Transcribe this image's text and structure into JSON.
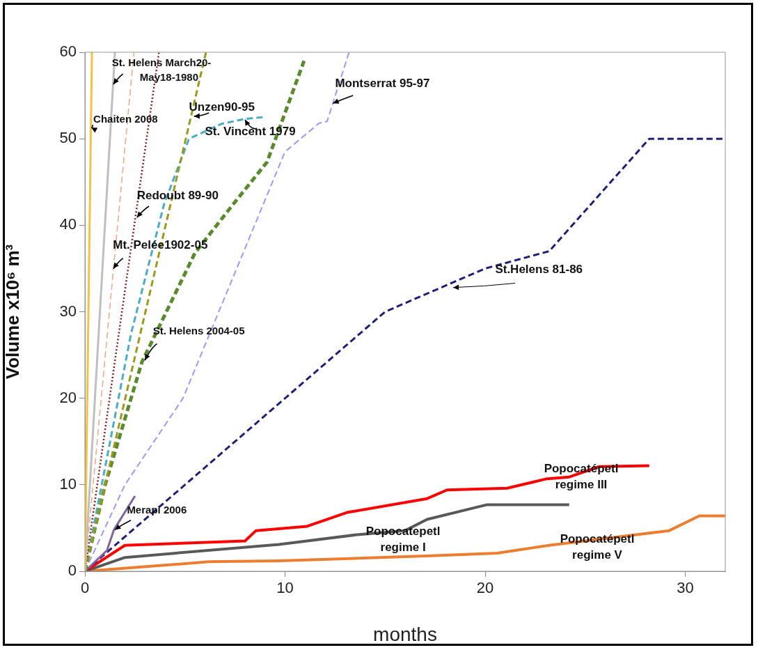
{
  "chart_data": {
    "type": "line",
    "xlabel": "months",
    "ylabel": "Volume x10⁶ m³",
    "xlim": [
      0,
      32
    ],
    "ylim": [
      0,
      60
    ],
    "xticks": [
      0,
      10,
      20,
      30
    ],
    "yticks": [
      0,
      10,
      20,
      30,
      40,
      50,
      60
    ],
    "grid": false,
    "legend": false,
    "marker": "none",
    "series": [
      {
        "name": "Chaiten 2008",
        "color": "#f5c242",
        "line_style": "solid",
        "x": [
          0,
          0.35
        ],
        "values": [
          0,
          60
        ]
      },
      {
        "name": "St. Helens March20-\nMay18-1980",
        "color": "#bfbfbf",
        "line_style": "solid",
        "x": [
          0,
          1.5
        ],
        "values": [
          0,
          60
        ]
      },
      {
        "name": "Mt. Pelée1902-05",
        "color": "#f4a582",
        "line_style": "dashed",
        "x": [
          0,
          2.45
        ],
        "values": [
          0,
          60
        ]
      },
      {
        "name": "Redoubt 89-90",
        "color": "#8b1a1a",
        "line_style": "dotted",
        "x": [
          0,
          3.7
        ],
        "values": [
          0,
          60
        ]
      },
      {
        "name": "Unzen90-95",
        "color": "#9a9a1a",
        "line_style": "dashed",
        "x": [
          0,
          6.05
        ],
        "values": [
          0,
          60
        ]
      },
      {
        "name": "St. Vincent 1979",
        "color": "#4bacc6",
        "line_style": "dashed",
        "x": [
          0,
          2.3,
          3.95,
          5.2,
          6.8,
          8,
          8.95
        ],
        "values": [
          0,
          27.4,
          42.4,
          50,
          51.7,
          52.3,
          52.5
        ]
      },
      {
        "name": "St. Helens 2004-05",
        "color": "#5a8a2e",
        "line_style": "dashed",
        "x": [
          0,
          1,
          2.85,
          5.5,
          7.4,
          9.1,
          10.95
        ],
        "values": [
          0,
          9.9,
          24.2,
          36.8,
          42.4,
          47.3,
          59
        ]
      },
      {
        "name": "Montserrat 95-97",
        "color": "#9999ff",
        "line_style": "dashed",
        "x": [
          0,
          2,
          4.9,
          10,
          11.7,
          12.1,
          13.2
        ],
        "values": [
          0,
          10,
          20,
          48.5,
          51.8,
          52,
          60
        ]
      },
      {
        "name": "Merapi 2006",
        "color": "#8064a2",
        "line_style": "solid",
        "x": [
          0,
          1.1,
          1.45,
          2.5
        ],
        "values": [
          0,
          2.4,
          4.8,
          8.7
        ]
      },
      {
        "name": "St.Helens 81-86",
        "color": "#1f1f7a",
        "line_style": "dashed",
        "x": [
          0,
          15,
          20,
          23.2,
          28.2,
          32
        ],
        "values": [
          0,
          30,
          35,
          37,
          50,
          50
        ]
      },
      {
        "name": "Popocatépetl\nregime III",
        "color": "#ff0000",
        "line_style": "solid",
        "x": [
          0,
          2,
          8,
          8.55,
          11.1,
          13.1,
          17.1,
          18.1,
          21.1,
          23.1,
          24.2,
          25.7,
          28.2
        ],
        "values": [
          0,
          3,
          3.5,
          4.7,
          5.2,
          6.8,
          8.4,
          9.4,
          9.6,
          10.7,
          10.9,
          12.1,
          12.2
        ]
      },
      {
        "name": "Popocatepetl\nregime I",
        "color": "#595959",
        "line_style": "solid",
        "x": [
          0,
          2,
          9.7,
          13.5,
          16,
          17.1,
          20.1,
          24.2
        ],
        "values": [
          0,
          1.6,
          3.1,
          4.2,
          4.7,
          6,
          7.7,
          7.7
        ]
      },
      {
        "name": "Popocatépetl\nregime V",
        "color": "#ed7d31",
        "line_style": "solid",
        "x": [
          0,
          6.2,
          9.7,
          17.3,
          20.6,
          23.2,
          29.2,
          30.7,
          32
        ],
        "values": [
          0,
          1.1,
          1.2,
          1.8,
          2.1,
          3,
          4.7,
          6.4,
          6.4
        ]
      }
    ]
  }
}
